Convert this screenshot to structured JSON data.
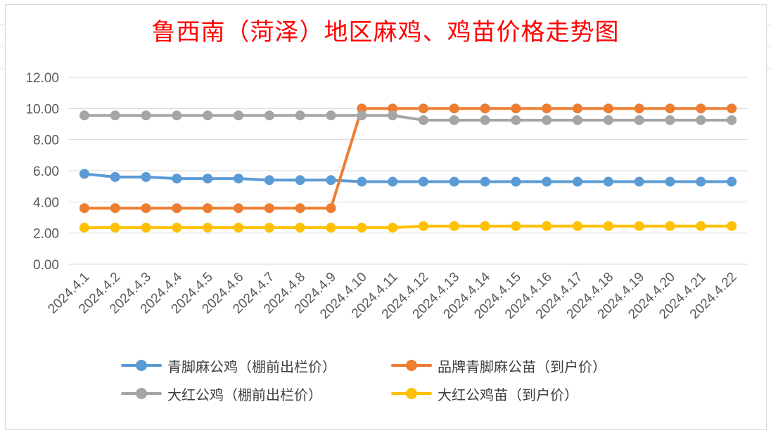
{
  "chart_data": {
    "type": "line",
    "title": "鲁西南（菏泽）地区麻鸡、鸡苗价格走势图",
    "xlabel": "",
    "ylabel": "",
    "ylim": [
      0,
      12
    ],
    "yticks": [
      "0.00",
      "2.00",
      "4.00",
      "6.00",
      "8.00",
      "10.00",
      "12.00"
    ],
    "grid": true,
    "legend_position": "bottom",
    "categories": [
      "2024.4.1",
      "2024.4.2",
      "2024.4.3",
      "2024.4.4",
      "2024.4.5",
      "2024.4.6",
      "2024.4.7",
      "2024.4.8",
      "2024.4.9",
      "2024.4.10",
      "2024.4.11",
      "2024.4.12",
      "2024.4.13",
      "2024.4.14",
      "2024.4.15",
      "2024.4.16",
      "2024.4.17",
      "2024.4.18",
      "2024.4.19",
      "2024.4.20",
      "2024.4.21",
      "2024.4.22"
    ],
    "series": [
      {
        "name": "青脚麻公鸡（棚前出栏价）",
        "color": "#5b9bd5",
        "values": [
          5.8,
          5.6,
          5.6,
          5.5,
          5.5,
          5.5,
          5.4,
          5.4,
          5.4,
          5.3,
          5.3,
          5.3,
          5.3,
          5.3,
          5.3,
          5.3,
          5.3,
          5.3,
          5.3,
          5.3,
          5.3,
          5.3
        ]
      },
      {
        "name": "品牌青脚麻公苗（到户价）",
        "color": "#ed7d31",
        "values": [
          3.6,
          3.6,
          3.6,
          3.6,
          3.6,
          3.6,
          3.6,
          3.6,
          3.6,
          10.0,
          10.0,
          10.0,
          10.0,
          10.0,
          10.0,
          10.0,
          10.0,
          10.0,
          10.0,
          10.0,
          10.0,
          10.0
        ]
      },
      {
        "name": "大红公鸡（棚前出栏价）",
        "color": "#a5a5a5",
        "values": [
          9.55,
          9.55,
          9.55,
          9.55,
          9.55,
          9.55,
          9.55,
          9.55,
          9.55,
          9.55,
          9.55,
          9.25,
          9.25,
          9.25,
          9.25,
          9.25,
          9.25,
          9.25,
          9.25,
          9.25,
          9.25,
          9.25
        ]
      },
      {
        "name": "大红公鸡苗（到户价）",
        "color": "#ffc000",
        "values": [
          2.35,
          2.35,
          2.35,
          2.35,
          2.35,
          2.35,
          2.35,
          2.35,
          2.35,
          2.35,
          2.35,
          2.45,
          2.45,
          2.45,
          2.45,
          2.45,
          2.45,
          2.45,
          2.45,
          2.45,
          2.45,
          2.45
        ]
      }
    ]
  }
}
